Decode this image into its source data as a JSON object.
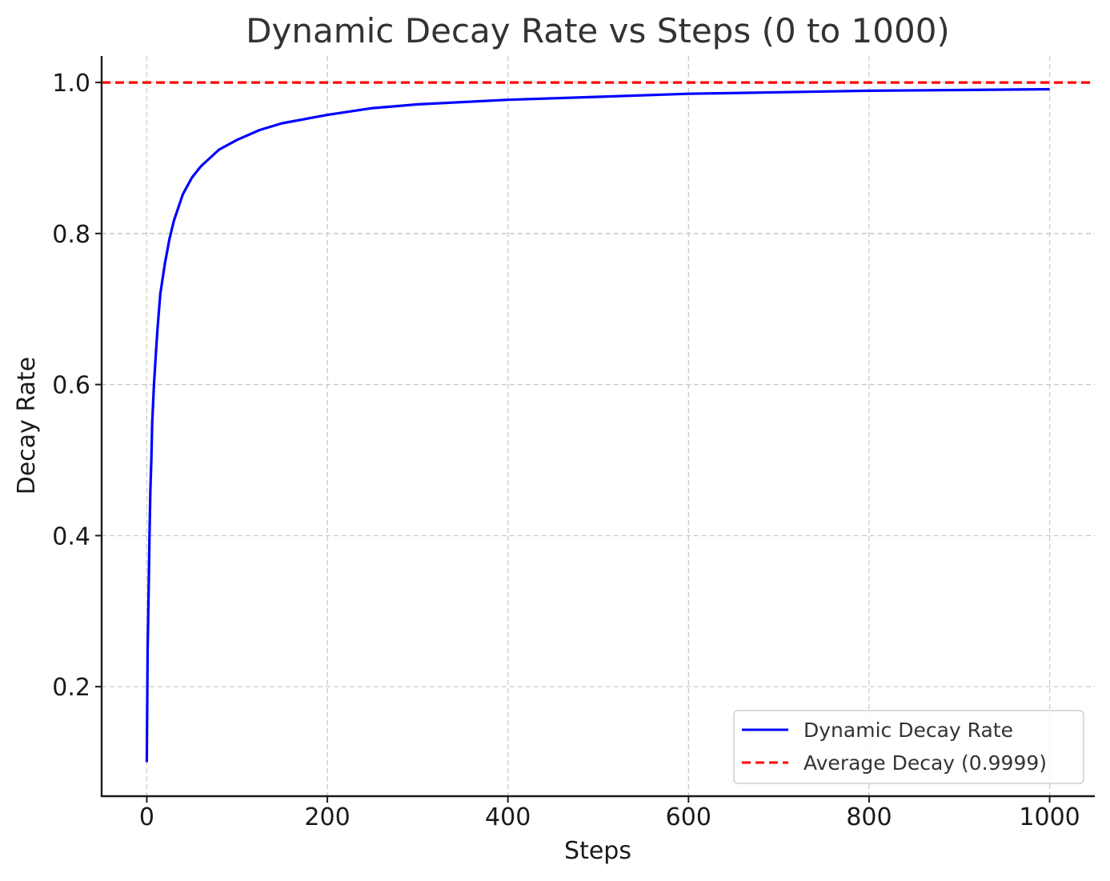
{
  "chart_data": {
    "type": "line",
    "title": "Dynamic Decay Rate vs Steps (0 to 1000)",
    "xlabel": "Steps",
    "ylabel": "Decay Rate",
    "xlim": [
      -50,
      1050
    ],
    "ylim": [
      0.055,
      1.035
    ],
    "xticks": [
      0,
      200,
      400,
      600,
      800,
      1000
    ],
    "xtick_labels": [
      "0",
      "200",
      "400",
      "600",
      "800",
      "1000"
    ],
    "yticks": [
      0.2,
      0.4,
      0.6,
      0.8,
      1.0
    ],
    "ytick_labels": [
      "0.2",
      "0.4",
      "0.6",
      "0.8",
      "1.0"
    ],
    "grid": true,
    "legend_position": "bottom-right",
    "series": [
      {
        "name": "Dynamic Decay Rate",
        "color": "#0000ff",
        "style": "solid",
        "x": [
          0,
          1,
          2,
          3,
          4,
          5,
          6,
          8,
          10,
          12,
          15,
          20,
          25,
          30,
          40,
          50,
          60,
          80,
          100,
          125,
          150,
          200,
          250,
          300,
          400,
          500,
          600,
          700,
          800,
          900,
          1000
        ],
        "y": [
          0.1,
          0.25,
          0.325,
          0.4,
          0.46,
          0.5,
          0.55,
          0.6,
          0.64,
          0.675,
          0.72,
          0.76,
          0.792,
          0.817,
          0.852,
          0.874,
          0.889,
          0.911,
          0.924,
          0.937,
          0.946,
          0.957,
          0.966,
          0.971,
          0.977,
          0.981,
          0.985,
          0.987,
          0.989,
          0.99,
          0.991
        ]
      },
      {
        "name": "Average Decay (0.9999)",
        "color": "#ff0000",
        "style": "dashed",
        "x": [
          -50,
          1050
        ],
        "y": [
          0.9999,
          0.9999
        ]
      }
    ]
  }
}
